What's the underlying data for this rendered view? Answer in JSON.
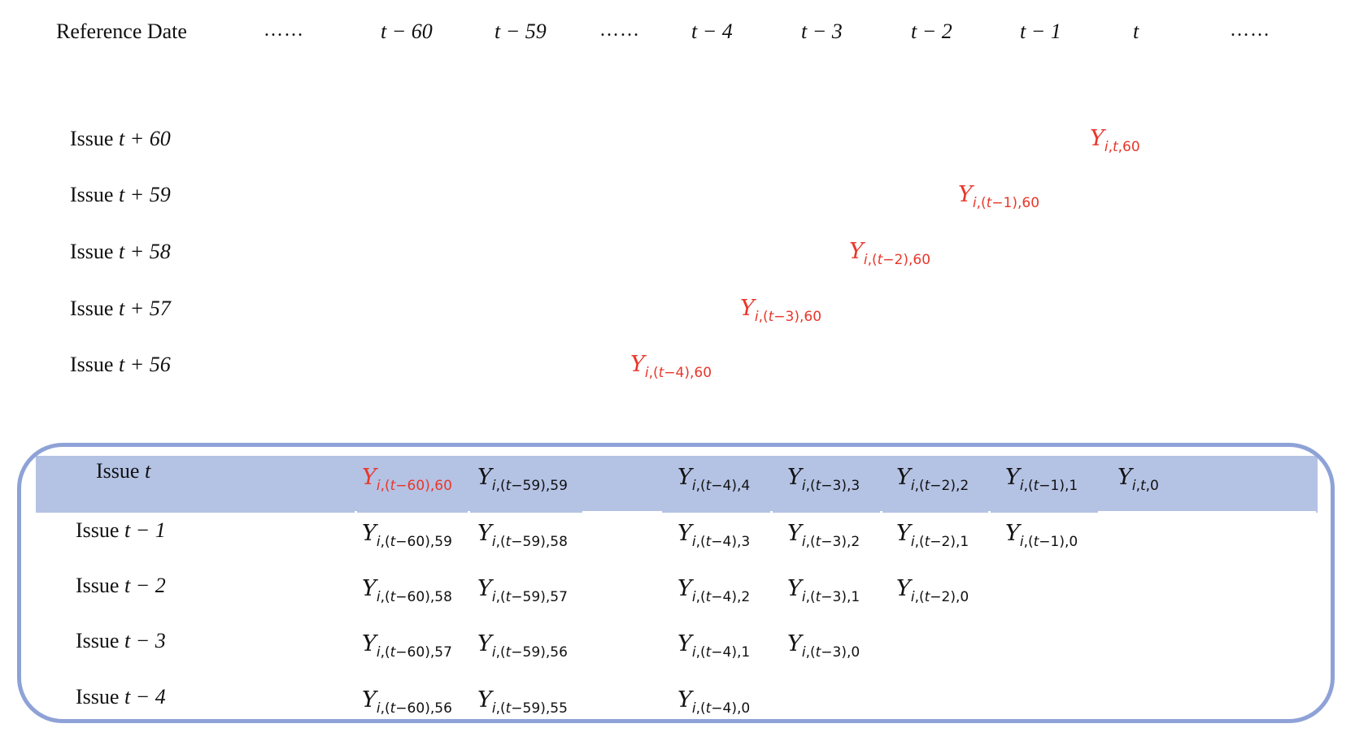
{
  "header": {
    "label": "Reference Date",
    "dots": "……",
    "cols": [
      "t − 60",
      "t − 59",
      "t − 4",
      "t − 3",
      "t − 2",
      "t − 1",
      "t"
    ]
  },
  "future_issues": [
    {
      "label": "Issue",
      "term": "t + 60",
      "value": {
        "base": "Y",
        "sub": "i,t,60"
      }
    },
    {
      "label": "Issue",
      "term": "t + 59",
      "value": {
        "base": "Y",
        "sub": "i,(t−1),60"
      }
    },
    {
      "label": "Issue",
      "term": "t + 58",
      "value": {
        "base": "Y",
        "sub": "i,(t−2),60"
      }
    },
    {
      "label": "Issue",
      "term": "t + 57",
      "value": {
        "base": "Y",
        "sub": "i,(t−3),60"
      }
    },
    {
      "label": "Issue",
      "term": "t + 56",
      "value": {
        "base": "Y",
        "sub": "i,(t−4),60"
      }
    }
  ],
  "highlighted_issues": [
    {
      "label": "Issue",
      "term": "t",
      "cells": [
        {
          "base": "Y",
          "sub": "i,(t−60),60",
          "red": true
        },
        {
          "base": "Y",
          "sub": "i,(t−59),59"
        },
        {
          "base": "Y",
          "sub": "i,(t−4),4"
        },
        {
          "base": "Y",
          "sub": "i,(t−3),3"
        },
        {
          "base": "Y",
          "sub": "i,(t−2),2"
        },
        {
          "base": "Y",
          "sub": "i,(t−1),1"
        },
        {
          "base": "Y",
          "sub": "i,t,0"
        }
      ]
    },
    {
      "label": "Issue",
      "term": "t − 1",
      "cells": [
        {
          "base": "Y",
          "sub": "i,(t−60),59"
        },
        {
          "base": "Y",
          "sub": "i,(t−59),58"
        },
        {
          "base": "Y",
          "sub": "i,(t−4),3"
        },
        {
          "base": "Y",
          "sub": "i,(t−3),2"
        },
        {
          "base": "Y",
          "sub": "i,(t−2),1"
        },
        {
          "base": "Y",
          "sub": "i,(t−1),0"
        }
      ]
    },
    {
      "label": "Issue",
      "term": "t − 2",
      "cells": [
        {
          "base": "Y",
          "sub": "i,(t−60),58"
        },
        {
          "base": "Y",
          "sub": "i,(t−59),57"
        },
        {
          "base": "Y",
          "sub": "i,(t−4),2"
        },
        {
          "base": "Y",
          "sub": "i,(t−3),1"
        },
        {
          "base": "Y",
          "sub": "i,(t−2),0"
        }
      ]
    },
    {
      "label": "Issue",
      "term": "t − 3",
      "cells": [
        {
          "base": "Y",
          "sub": "i,(t−60),57"
        },
        {
          "base": "Y",
          "sub": "i,(t−59),56"
        },
        {
          "base": "Y",
          "sub": "i,(t−4),1"
        },
        {
          "base": "Y",
          "sub": "i,(t−3),0"
        }
      ]
    },
    {
      "label": "Issue",
      "term": "t − 4",
      "cells": [
        {
          "base": "Y",
          "sub": "i,(t−60),56"
        },
        {
          "base": "Y",
          "sub": "i,(t−59),55"
        },
        {
          "base": "Y",
          "sub": "i,(t−4),0"
        }
      ]
    }
  ],
  "colors": {
    "highlight_band": "#b4c2e4",
    "frame": "#8ea2d7",
    "emphasis": "#e8372a"
  }
}
